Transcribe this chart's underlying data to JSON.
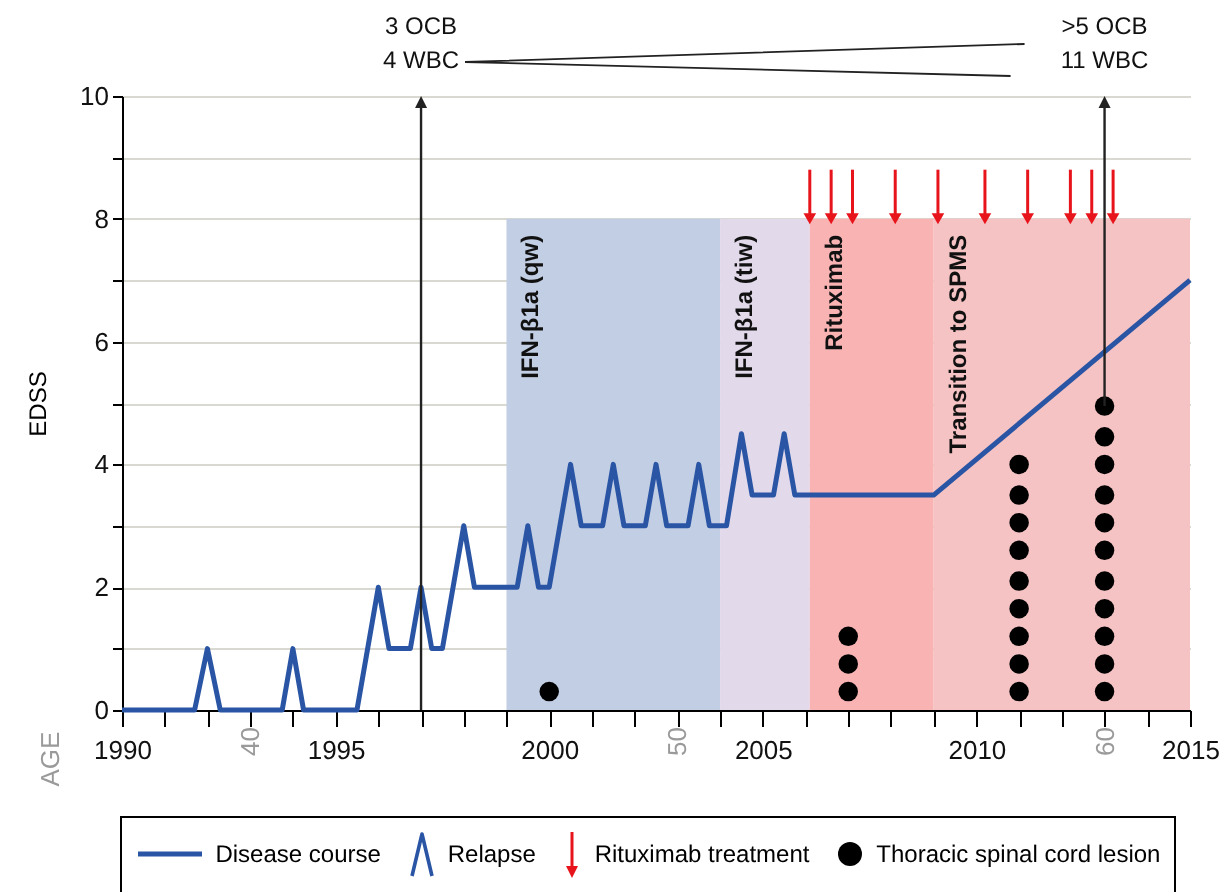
{
  "chart_data": {
    "type": "line",
    "ylabel": "EDSS",
    "x2label": "AGE",
    "grid": "y",
    "legend": "bottom",
    "xlim": [
      1990,
      2015
    ],
    "xticks": [
      1990,
      {
        "value": 1991,
        "label": null
      },
      {
        "value": 1992,
        "label": null
      },
      {
        "value": 1993,
        "label": null
      },
      {
        "value": 1994,
        "label": null
      },
      1995,
      {
        "value": 1996,
        "label": null
      },
      {
        "value": 1997,
        "label": null
      },
      {
        "value": 1998,
        "label": null
      },
      {
        "value": 1999,
        "label": null
      },
      2000,
      {
        "value": 2001,
        "label": null
      },
      {
        "value": 2002,
        "label": null
      },
      {
        "value": 2003,
        "label": null
      },
      {
        "value": 2004,
        "label": null
      },
      2005,
      {
        "value": 2006,
        "label": null
      },
      {
        "value": 2007,
        "label": null
      },
      {
        "value": 2008,
        "label": null
      },
      {
        "value": 2009,
        "label": null
      },
      2010,
      {
        "value": 2011,
        "label": null
      },
      {
        "value": 2012,
        "label": null
      },
      {
        "value": 2013,
        "label": null
      },
      {
        "value": 2014,
        "label": null
      },
      2015
    ],
    "x2lim": [
      37,
      62
    ],
    "x2ticks": [
      40,
      50,
      60
    ],
    "ylim": [
      0,
      10
    ],
    "yticks": [
      0,
      {
        "value": 1,
        "label": null
      },
      2,
      {
        "value": 3,
        "label": null
      },
      4,
      {
        "value": 5,
        "label": null
      },
      6,
      {
        "value": 7,
        "label": null
      },
      8,
      {
        "value": 9,
        "label": null
      },
      10
    ],
    "series": [
      {
        "name": "Disease course",
        "color": "#2a55a5",
        "x": [
          1990,
          1991.7,
          1992,
          1992.3,
          1993.75,
          1994,
          1994.25,
          1995.5,
          1996,
          1996.25,
          1996.75,
          1997,
          1997.25,
          1997.5,
          1998,
          1998.25,
          1999.25,
          1999.5,
          1999.75,
          2000,
          2000.5,
          2000.75,
          2001.25,
          2001.5,
          2001.75,
          2002.25,
          2002.5,
          2002.75,
          2003.25,
          2003.5,
          2003.75,
          2004.15,
          2004.5,
          2004.75,
          2005.25,
          2005.5,
          2005.75,
          2009,
          2015
        ],
        "values": [
          0,
          0,
          1,
          0,
          0,
          1,
          0,
          0,
          2,
          1,
          1,
          2,
          1,
          1,
          3,
          2,
          2,
          3,
          2,
          2,
          4,
          3,
          3,
          4,
          3,
          3,
          4,
          3,
          3,
          4,
          3,
          3,
          4.5,
          3.5,
          3.5,
          4.5,
          3.5,
          3.5,
          7
        ]
      },
      {
        "name": "Rituximab treatment",
        "type": "scatter",
        "marker": "triangle",
        "color": "#e8141c",
        "x": [
          2006.1,
          2006.6,
          2007.1,
          2008.1,
          2009.1,
          2010.2,
          2011.2,
          2012.2,
          2012.7,
          2013.2
        ],
        "values": [
          8,
          8,
          8,
          8,
          8,
          8,
          8,
          8,
          8,
          8
        ],
        "errors": [
          [
            8,
            8.8
          ],
          [
            8,
            8.8
          ],
          [
            8,
            8.8
          ],
          [
            8,
            8.8
          ],
          [
            8,
            8.8
          ],
          [
            8,
            8.8
          ],
          [
            8,
            8.8
          ],
          [
            8,
            8.8
          ],
          [
            8,
            8.8
          ],
          [
            8,
            8.8
          ]
        ]
      },
      {
        "name": "Thoracic spinal cord lesion",
        "type": "scatter",
        "marker": "circle",
        "color": "#000000",
        "x": [
          2000,
          2007,
          2007,
          2007,
          2011,
          2011,
          2011,
          2011,
          2011,
          2011,
          2011,
          2011,
          2011,
          2013,
          2013,
          2013,
          2013,
          2013,
          2013,
          2013,
          2013,
          2013,
          2013,
          2013
        ],
        "values": [
          0.3,
          0.3,
          0.75,
          1.2,
          0.3,
          0.75,
          1.2,
          1.65,
          2.1,
          2.6,
          3.05,
          3.5,
          4,
          0.3,
          0.75,
          1.2,
          1.65,
          2.1,
          2.6,
          3.05,
          3.5,
          4,
          4.45,
          4.95
        ]
      }
    ],
    "bands": [
      {
        "axis": "x",
        "from": 1999,
        "to": 2004,
        "label": "IFN-β1a (qw)",
        "color": "#c2cee4"
      },
      {
        "axis": "x",
        "from": 2004,
        "to": 2006.1,
        "label": "IFN-β1a (tiw)",
        "color": "#e2d9eb"
      },
      {
        "axis": "x",
        "from": 2006.1,
        "to": 2009,
        "label": "Rituximab",
        "color": "#f9b3b3"
      },
      {
        "axis": "x",
        "from": 2009,
        "to": 2015,
        "label": "Transition to SPMS",
        "color": "#f5c3c3"
      }
    ],
    "ref_lines": [
      {
        "axis": "x",
        "value": 1997,
        "label": "3 OCB\n4 WBC"
      }
    ],
    "annotations": [
      {
        "text": ">5 OCB\n11 WBC",
        "x": 2013,
        "y": 4.95
      },
      "Relapse"
    ]
  }
}
